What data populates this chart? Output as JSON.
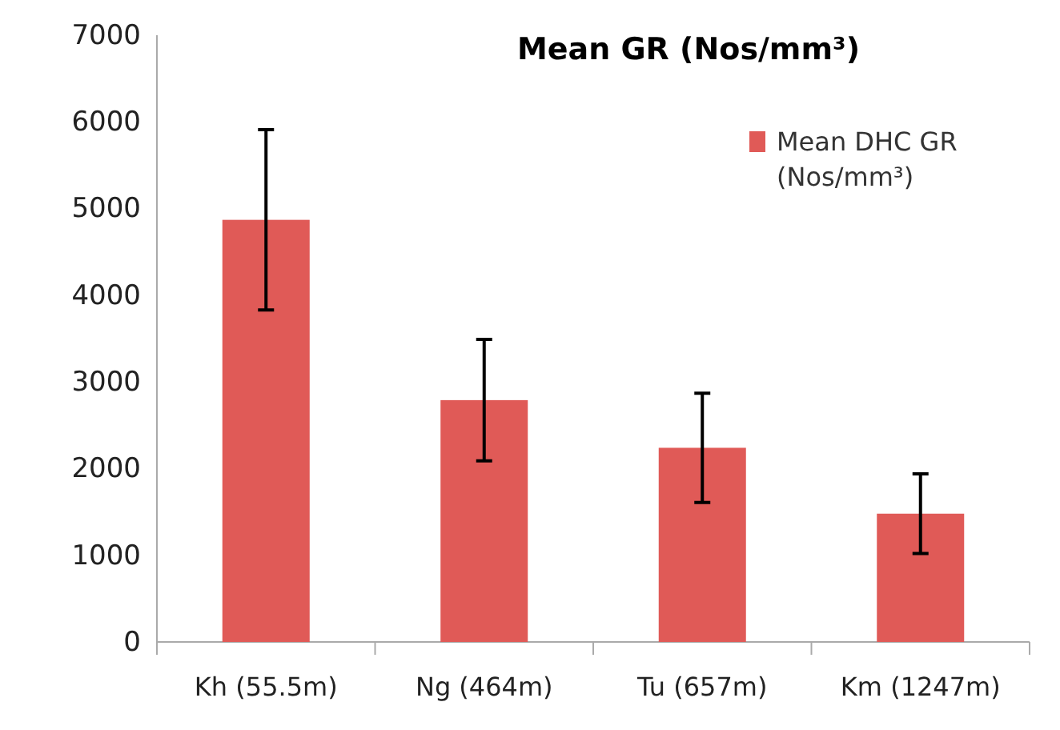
{
  "chart_data": {
    "type": "bar",
    "title": "Mean GR (Nos/mm³)",
    "categories": [
      "Kh (55.5m)",
      "Ng (464m)",
      "Tu (657m)",
      "Km (1247m)"
    ],
    "series": [
      {
        "name": "Mean DHC GR (Nos/mm³)",
        "color": "#e05a57",
        "values": [
          4870,
          2790,
          2240,
          1480
        ],
        "errors": [
          1040,
          700,
          630,
          460
        ]
      }
    ],
    "ylim": [
      0,
      7000
    ],
    "yticks": [
      0,
      1000,
      2000,
      3000,
      4000,
      5000,
      6000,
      7000
    ],
    "grid": false,
    "legend": "top right"
  }
}
